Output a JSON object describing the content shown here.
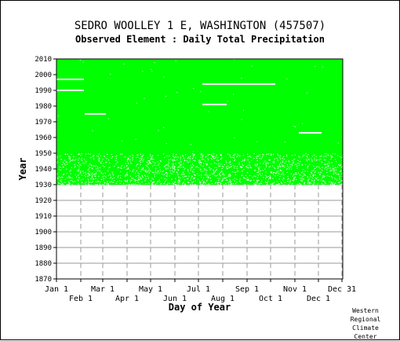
{
  "title": "SEDRO WOOLLEY 1 E, WASHINGTON   (457507)",
  "subtitle": "Observed Element : Daily Total Precipitation",
  "credit": [
    "Western",
    "Regional",
    "Climate",
    "Center"
  ],
  "colors": {
    "data": "#00ff00",
    "grid": "#9a9a9a",
    "axis": "#000000",
    "gap": "#ffffff"
  },
  "chart_data": {
    "type": "heatmap",
    "description_of_encoding": "green = day with observed value, white = missing day",
    "xlabel": "Day of Year",
    "ylabel": "Year",
    "x_ticks_row1": [
      {
        "label": "Jan 1",
        "day": 1
      },
      {
        "label": "Mar 1",
        "day": 60
      },
      {
        "label": "May 1",
        "day": 121
      },
      {
        "label": "Jul 1",
        "day": 182
      },
      {
        "label": "Sep 1",
        "day": 244
      },
      {
        "label": "Nov 1",
        "day": 305
      },
      {
        "label": "Dec 31",
        "day": 365
      }
    ],
    "x_ticks_row2": [
      {
        "label": "Feb 1",
        "day": 32
      },
      {
        "label": "Apr 1",
        "day": 91
      },
      {
        "label": "Jun 1",
        "day": 152
      },
      {
        "label": "Aug 1",
        "day": 213
      },
      {
        "label": "Oct 1",
        "day": 274
      },
      {
        "label": "Dec 1",
        "day": 335
      }
    ],
    "xlim": [
      1,
      366
    ],
    "ylim": [
      1870,
      2010
    ],
    "y_ticks": [
      1870,
      1880,
      1890,
      1900,
      1910,
      1920,
      1930,
      1940,
      1950,
      1960,
      1970,
      1980,
      1990,
      2000,
      2010
    ],
    "data_years": [
      1930,
      2010
    ],
    "missing_segments": [
      {
        "year": 1997,
        "start_day": 1,
        "end_day": 36
      },
      {
        "year": 1990,
        "start_day": 1,
        "end_day": 36
      },
      {
        "year": 1975,
        "start_day": 37,
        "end_day": 64
      },
      {
        "year": 1994,
        "start_day": 187,
        "end_day": 280
      },
      {
        "year": 1981,
        "start_day": 187,
        "end_day": 218
      },
      {
        "year": 1963,
        "start_day": 310,
        "end_day": 339
      }
    ],
    "scattered_missing_years": [
      1930,
      1950
    ],
    "grid": true
  }
}
